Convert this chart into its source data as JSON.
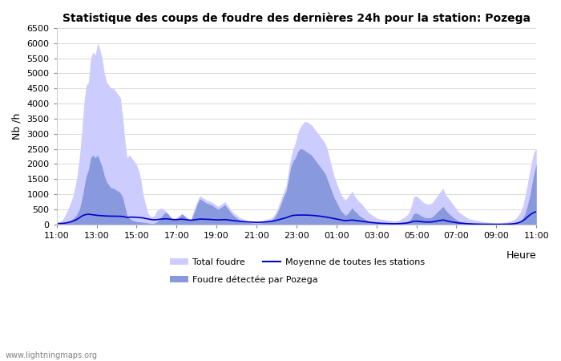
{
  "title": "Statistique des coups de foudre des dernières 24h pour la station: Pozega",
  "ylabel": "Nb /h",
  "xlabel": "Heure",
  "watermark": "www.lightningmaps.org",
  "xtick_labels": [
    "11:00",
    "13:00",
    "15:00",
    "17:00",
    "19:00",
    "21:00",
    "23:00",
    "01:00",
    "03:00",
    "05:00",
    "07:00",
    "09:00",
    "11:00"
  ],
  "ylim": [
    0,
    6500
  ],
  "yticks": [
    0,
    500,
    1000,
    1500,
    2000,
    2500,
    3000,
    3500,
    4000,
    4500,
    5000,
    5500,
    6000,
    6500
  ],
  "color_total": "#ccccff",
  "color_pozega": "#8899dd",
  "color_mean": "#0000cc",
  "legend_total": "Total foudre",
  "legend_pozega": "Foudre détectée par Pozega",
  "legend_mean": "Moyenne de toutes les stations",
  "total_foudre": [
    50,
    80,
    120,
    200,
    350,
    500,
    700,
    900,
    1200,
    1600,
    2200,
    3000,
    4000,
    4600,
    4700,
    5500,
    5700,
    5600,
    6000,
    5800,
    5500,
    5000,
    4700,
    4600,
    4500,
    4500,
    4400,
    4300,
    4200,
    3600,
    2800,
    2200,
    2300,
    2200,
    2100,
    2000,
    1800,
    1500,
    1000,
    700,
    400,
    280,
    250,
    300,
    450,
    500,
    550,
    500,
    450,
    350,
    250,
    200,
    200,
    250,
    300,
    350,
    300,
    250,
    200,
    180,
    400,
    600,
    800,
    950,
    900,
    850,
    800,
    780,
    750,
    700,
    650,
    600,
    650,
    700,
    750,
    650,
    550,
    450,
    380,
    320,
    260,
    220,
    180,
    150,
    130,
    110,
    100,
    100,
    100,
    110,
    120,
    140,
    160,
    180,
    200,
    250,
    350,
    500,
    700,
    900,
    1100,
    1300,
    1800,
    2200,
    2500,
    2700,
    3000,
    3200,
    3300,
    3400,
    3400,
    3350,
    3300,
    3200,
    3100,
    3000,
    2900,
    2800,
    2700,
    2500,
    2200,
    1900,
    1600,
    1400,
    1200,
    1000,
    900,
    800,
    900,
    1000,
    1100,
    950,
    850,
    750,
    700,
    600,
    500,
    420,
    350,
    300,
    250,
    200,
    180,
    170,
    160,
    150,
    140,
    130,
    120,
    120,
    130,
    150,
    200,
    250,
    300,
    400,
    600,
    900,
    950,
    900,
    820,
    750,
    700,
    680,
    680,
    700,
    800,
    900,
    1000,
    1100,
    1200,
    1000,
    900,
    800,
    700,
    600,
    500,
    400,
    350,
    300,
    250,
    200,
    180,
    160,
    140,
    130,
    120,
    100,
    90,
    80,
    70,
    65,
    60,
    55,
    50,
    50,
    60,
    70,
    80,
    100,
    120,
    150,
    200,
    300,
    400,
    600,
    900,
    1300,
    1700,
    2100,
    2400,
    2500
  ],
  "pozega_foudre": [
    10,
    15,
    20,
    30,
    50,
    80,
    120,
    180,
    250,
    350,
    500,
    800,
    1200,
    1600,
    1800,
    2200,
    2300,
    2200,
    2300,
    2100,
    1900,
    1600,
    1400,
    1300,
    1200,
    1200,
    1150,
    1100,
    1050,
    900,
    600,
    300,
    200,
    150,
    120,
    100,
    90,
    80,
    70,
    60,
    50,
    40,
    30,
    40,
    80,
    150,
    250,
    350,
    400,
    350,
    250,
    180,
    150,
    180,
    250,
    350,
    300,
    220,
    160,
    120,
    300,
    500,
    700,
    850,
    800,
    750,
    700,
    680,
    650,
    600,
    550,
    500,
    550,
    600,
    650,
    550,
    450,
    350,
    280,
    220,
    170,
    130,
    100,
    80,
    65,
    55,
    45,
    40,
    40,
    45,
    55,
    70,
    90,
    110,
    130,
    170,
    250,
    380,
    550,
    750,
    950,
    1100,
    1500,
    1900,
    2100,
    2200,
    2400,
    2500,
    2500,
    2450,
    2400,
    2350,
    2300,
    2200,
    2100,
    2000,
    1900,
    1800,
    1700,
    1500,
    1300,
    1100,
    900,
    750,
    600,
    450,
    380,
    300,
    350,
    450,
    550,
    450,
    380,
    300,
    250,
    200,
    160,
    120,
    90,
    70,
    55,
    45,
    35,
    30,
    28,
    25,
    22,
    20,
    18,
    18,
    20,
    30,
    45,
    60,
    80,
    120,
    200,
    350,
    380,
    350,
    300,
    260,
    230,
    220,
    220,
    240,
    300,
    380,
    450,
    520,
    600,
    480,
    400,
    330,
    260,
    200,
    150,
    110,
    90,
    75,
    60,
    48,
    40,
    32,
    27,
    22,
    18,
    15,
    12,
    10,
    9,
    8,
    7,
    7,
    7,
    7,
    8,
    10,
    12,
    15,
    20,
    28,
    40,
    70,
    120,
    200,
    350,
    600,
    900,
    1300,
    1700,
    2000
  ],
  "mean_foudre": [
    30,
    32,
    35,
    40,
    50,
    65,
    85,
    110,
    140,
    175,
    220,
    275,
    310,
    330,
    340,
    330,
    320,
    310,
    300,
    295,
    290,
    285,
    280,
    278,
    275,
    274,
    273,
    272,
    271,
    265,
    250,
    235,
    240,
    245,
    242,
    238,
    232,
    225,
    215,
    200,
    185,
    170,
    158,
    155,
    160,
    170,
    180,
    185,
    188,
    183,
    175,
    165,
    158,
    162,
    170,
    175,
    168,
    158,
    148,
    140,
    148,
    158,
    170,
    180,
    178,
    174,
    170,
    168,
    165,
    160,
    155,
    150,
    153,
    158,
    162,
    155,
    145,
    135,
    125,
    118,
    110,
    103,
    96,
    90,
    84,
    80,
    76,
    72,
    70,
    72,
    75,
    80,
    86,
    93,
    100,
    110,
    125,
    145,
    165,
    185,
    205,
    225,
    255,
    280,
    300,
    305,
    310,
    312,
    313,
    312,
    310,
    307,
    303,
    297,
    290,
    282,
    273,
    263,
    252,
    240,
    225,
    210,
    193,
    178,
    163,
    148,
    138,
    128,
    132,
    140,
    148,
    138,
    128,
    118,
    110,
    100,
    90,
    80,
    70,
    62,
    55,
    48,
    42,
    38,
    35,
    32,
    29,
    27,
    25,
    25,
    27,
    30,
    35,
    42,
    50,
    62,
    80,
    105,
    110,
    105,
    96,
    88,
    82,
    80,
    80,
    85,
    96,
    110,
    124,
    138,
    150,
    130,
    112,
    96,
    82,
    70,
    58,
    48,
    42,
    36,
    30,
    25,
    21,
    18,
    15,
    13,
    11,
    10,
    9,
    8,
    7,
    7,
    6,
    6,
    6,
    7,
    8,
    9,
    11,
    14,
    18,
    25,
    35,
    55,
    80,
    120,
    175,
    240,
    305,
    360,
    400,
    420
  ]
}
